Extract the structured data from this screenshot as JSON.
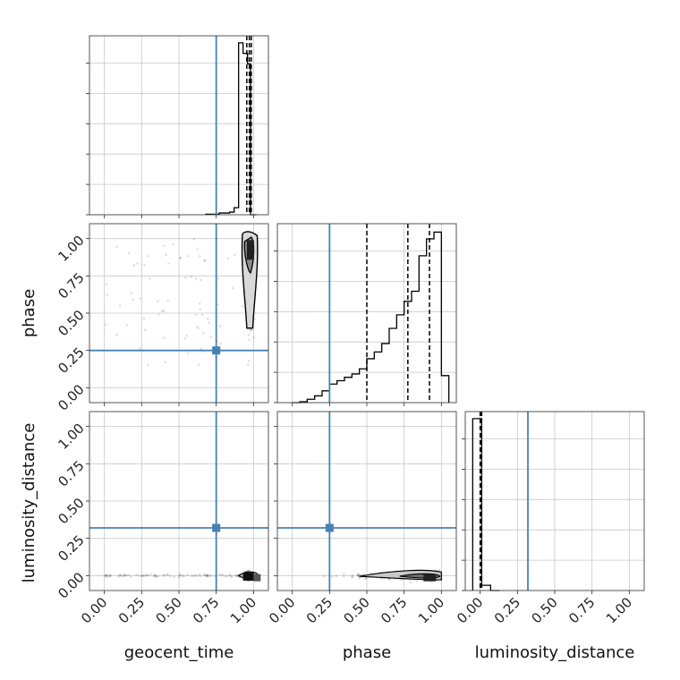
{
  "chart_data": {
    "type": "corner",
    "parameters": [
      "geocent_time",
      "phase",
      "luminosity_distance"
    ],
    "ticks": [
      0.0,
      0.25,
      0.5,
      0.75,
      1.0
    ],
    "tick_labels": [
      "0.00",
      "0.25",
      "0.50",
      "0.75",
      "1.00"
    ],
    "truth_color": "#4682b4",
    "truths": {
      "geocent_time": 0.75,
      "phase": 0.25,
      "luminosity_distance": 0.32
    },
    "grid": true,
    "histograms": [
      {
        "parameter": "geocent_time",
        "xlim": [
          -0.1,
          1.1
        ],
        "bin_edges": [
          0.68,
          0.77,
          0.84,
          0.87,
          0.9,
          0.93,
          0.96,
          0.98,
          1.02
        ],
        "counts": [
          0.3,
          1.0,
          1.5,
          4.0,
          98,
          92,
          86,
          0
        ],
        "ylim": [
          0,
          102
        ],
        "quantiles": [
          0.955,
          0.972,
          0.985
        ]
      },
      {
        "parameter": "phase",
        "xlim": [
          -0.1,
          1.1
        ],
        "bin_edges": [
          0.0,
          0.05,
          0.1,
          0.15,
          0.2,
          0.25,
          0.3,
          0.35,
          0.4,
          0.45,
          0.5,
          0.55,
          0.6,
          0.65,
          0.7,
          0.75,
          0.8,
          0.85,
          0.9,
          0.95,
          1.0,
          1.05
        ],
        "counts": [
          0,
          0.5,
          2,
          4,
          7,
          11,
          13,
          15,
          17,
          20,
          26,
          30,
          35,
          44,
          52,
          60,
          66,
          87,
          97,
          101,
          16
        ],
        "ylim": [
          0,
          106
        ],
        "quantiles": [
          0.5,
          0.775,
          0.92
        ]
      },
      {
        "parameter": "luminosity_distance",
        "xlim": [
          -0.1,
          1.1
        ],
        "bin_edges": [
          -0.05,
          0.01,
          0.07,
          0.13
        ],
        "counts": [
          98,
          3,
          0
        ],
        "ylim": [
          0,
          102
        ],
        "quantiles": [
          0.0,
          0.005,
          0.01
        ]
      }
    ],
    "scatter_panels": [
      {
        "x": "geocent_time",
        "y": "phase",
        "xlim": [
          -0.1,
          1.1
        ],
        "ylim": [
          -0.1,
          1.1
        ],
        "contour_center": [
          0.975,
          0.7
        ],
        "contour_extent": {
          "x_half": 0.05,
          "y_range": [
            0.4,
            1.02
          ]
        },
        "dense_region": [
          0.97,
          0.9
        ]
      },
      {
        "x": "geocent_time",
        "y": "luminosity_distance",
        "xlim": [
          -0.1,
          1.1
        ],
        "ylim": [
          -0.1,
          1.1
        ],
        "contour_center": [
          0.97,
          0.0
        ],
        "contour_extent": {
          "x_range": [
            0.9,
            1.03
          ],
          "y_half": 0.03
        },
        "dense_region": [
          0.96,
          -0.01
        ]
      },
      {
        "x": "phase",
        "y": "luminosity_distance",
        "xlim": [
          -0.1,
          1.1
        ],
        "ylim": [
          -0.1,
          1.1
        ],
        "contour_center": [
          0.85,
          0.0
        ],
        "contour_extent": {
          "x_range": [
            0.45,
            1.0
          ],
          "y_half": 0.04
        },
        "dense_region": [
          0.92,
          -0.01
        ]
      }
    ]
  }
}
